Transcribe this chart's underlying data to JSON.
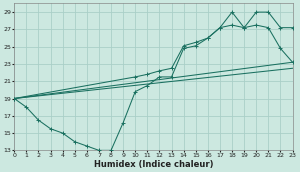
{
  "xlabel": "Humidex (Indice chaleur)",
  "background_color": "#cce8e0",
  "grid_color": "#aacfc8",
  "line_color": "#1a7060",
  "xlim": [
    0,
    23
  ],
  "ylim": [
    13,
    30
  ],
  "xticks": [
    0,
    1,
    2,
    3,
    4,
    5,
    6,
    7,
    8,
    9,
    10,
    11,
    12,
    13,
    14,
    15,
    16,
    17,
    18,
    19,
    20,
    21,
    22,
    23
  ],
  "yticks": [
    13,
    15,
    17,
    19,
    21,
    23,
    25,
    27,
    29
  ],
  "curve1_x": [
    0,
    1,
    2,
    3,
    4,
    5,
    6,
    7,
    8,
    9,
    10,
    11,
    12,
    13,
    14,
    15,
    16,
    17,
    18,
    19,
    20,
    21,
    22,
    23
  ],
  "curve1_y": [
    19,
    18,
    16.5,
    15.5,
    15,
    14,
    13.5,
    13,
    13,
    16.2,
    19.8,
    20.5,
    21.5,
    21.5,
    24.8,
    25.1,
    26.0,
    27.2,
    29.0,
    27.2,
    29.0,
    29.0,
    27.2,
    27.2
  ],
  "curve2_x": [
    0,
    10,
    11,
    12,
    13,
    14,
    15,
    16,
    17,
    18,
    19,
    20,
    21,
    22,
    23
  ],
  "curve2_y": [
    19,
    21.5,
    21.8,
    22.2,
    22.5,
    25.1,
    25.5,
    26.0,
    27.2,
    27.5,
    27.2,
    27.5,
    27.2,
    24.8,
    23.2
  ],
  "line1_x": [
    0,
    23
  ],
  "line1_y": [
    19,
    23.2
  ],
  "line2_x": [
    0,
    23
  ],
  "line2_y": [
    19.0,
    22.5
  ]
}
